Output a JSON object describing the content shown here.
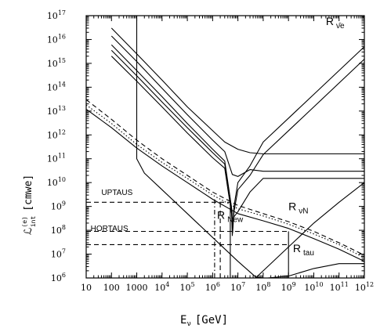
{
  "chart_data": {
    "type": "line",
    "title": "",
    "xlabel": "E",
    "xlabel_sub": "ν",
    "xlabel_unit": "[GeV]",
    "ylabel": "ℒ",
    "ylabel_sup": "(e)",
    "ylabel_sub": "int",
    "ylabel_unit": "[cmwe]",
    "x_scale": "log",
    "y_scale": "log",
    "xlim": [
      10,
      1000000000000.0
    ],
    "ylim": [
      1000000.0,
      1e+17
    ],
    "grid": false,
    "x_ticks": [
      {
        "value": 10,
        "label": "10",
        "sup": ""
      },
      {
        "value": 100,
        "label": "100",
        "sup": ""
      },
      {
        "value": 1000,
        "label": "1000",
        "sup": ""
      },
      {
        "value": 10000.0,
        "label": "10",
        "sup": "4"
      },
      {
        "value": 100000.0,
        "label": "10",
        "sup": "5"
      },
      {
        "value": 1000000.0,
        "label": "10",
        "sup": "6"
      },
      {
        "value": 10000000.0,
        "label": "10",
        "sup": "7"
      },
      {
        "value": 100000000.0,
        "label": "10",
        "sup": "8"
      },
      {
        "value": 1000000000.0,
        "label": "10",
        "sup": "9"
      },
      {
        "value": 10000000000.0,
        "label": "10",
        "sup": "10"
      },
      {
        "value": 100000000000.0,
        "label": "10",
        "sup": "11"
      },
      {
        "value": 1000000000000.0,
        "label": "10",
        "sup": "12"
      }
    ],
    "y_ticks": [
      {
        "value": 1000000.0,
        "label": "10",
        "sup": "6"
      },
      {
        "value": 10000000.0,
        "label": "10",
        "sup": "7"
      },
      {
        "value": 100000000.0,
        "label": "10",
        "sup": "8"
      },
      {
        "value": 1000000000.0,
        "label": "10",
        "sup": "9"
      },
      {
        "value": 10000000000.0,
        "label": "10",
        "sup": "10"
      },
      {
        "value": 100000000000.0,
        "label": "10",
        "sup": "11"
      },
      {
        "value": 1000000000000.0,
        "label": "10",
        "sup": "12"
      },
      {
        "value": 10000000000000.0,
        "label": "10",
        "sup": "13"
      },
      {
        "value": 100000000000000.0,
        "label": "10",
        "sup": "14"
      },
      {
        "value": 1000000000000000.0,
        "label": "10",
        "sup": "15"
      },
      {
        "value": 1e+16,
        "label": "10",
        "sup": "16"
      },
      {
        "value": 1e+17,
        "label": "10",
        "sup": "17"
      }
    ],
    "annotations": [
      {
        "text": "R",
        "sub": "ν̄e",
        "x": 30000000000.0,
        "y": 4e+16
      },
      {
        "text": "R",
        "sub": "νN",
        "x": 1000000000.0,
        "y": 700000000.0
      },
      {
        "text": "R",
        "sub": "New",
        "x": 1500000.0,
        "y": 300000000.0
      },
      {
        "text": "R",
        "sub": "tau",
        "x": 1500000000.0,
        "y": 12000000.0
      },
      {
        "text": "UPTAUS",
        "sub": "",
        "x": 40,
        "y": 3000000000.0
      },
      {
        "text": "HORTAUS",
        "sub": "",
        "x": 15,
        "y": 95000000.0
      }
    ],
    "series": [
      {
        "style": "solid",
        "points": [
          [
            100,
            3e+16
          ],
          [
            1000.0,
            2500000000000000.0
          ],
          [
            10000.0,
            200000000000000.0
          ],
          [
            100000.0,
            15000000000000.0
          ],
          [
            1000000.0,
            1500000000000.0
          ],
          [
            3000000.0,
            500000000000.0
          ],
          [
            10000000.0,
            250000000000.0
          ],
          [
            30000000.0,
            180000000000.0
          ],
          [
            100000000.0,
            160000000000.0
          ],
          [
            1000000000000.0,
            160000000000.0
          ]
        ]
      },
      {
        "style": "solid",
        "points": [
          [
            100,
            1.4e+16
          ],
          [
            1000.0,
            1200000000000000.0
          ],
          [
            10000.0,
            90000000000000.0
          ],
          [
            100000.0,
            7000000000000.0
          ],
          [
            1000000.0,
            600000000000.0
          ],
          [
            3000000.0,
            200000000000.0
          ],
          [
            6000000.0,
            22000000000.0
          ],
          [
            10000000.0,
            18000000000.0
          ],
          [
            30000000.0,
            35000000000.0
          ],
          [
            100000000.0,
            30000000000.0
          ],
          [
            1000000000000.0,
            30000000000.0
          ]
        ]
      },
      {
        "style": "solid",
        "points": [
          [
            100,
            6000000000000000.0
          ],
          [
            1000.0,
            500000000000000.0
          ],
          [
            10000.0,
            40000000000000.0
          ],
          [
            100000.0,
            3000000000000.0
          ],
          [
            1000000.0,
            250000000000.0
          ],
          [
            3000000.0,
            80000000000.0
          ],
          [
            5500000.0,
            1000000000.0
          ],
          [
            6000000.0,
            60000000.0
          ],
          [
            7000000.0,
            1000000000.0
          ],
          [
            10000000.0,
            10000000000.0
          ],
          [
            30000000.0,
            50000000000.0
          ],
          [
            100000000.0,
            500000000000.0
          ],
          [
            10000000000.0,
            50000000000000.0
          ],
          [
            1000000000000.0,
            5000000000000000.0
          ]
        ]
      },
      {
        "style": "solid",
        "points": [
          [
            100,
            3500000000000000.0
          ],
          [
            1000.0,
            300000000000000.0
          ],
          [
            10000.0,
            24000000000000.0
          ],
          [
            100000.0,
            2000000000000.0
          ],
          [
            1000000.0,
            180000000000.0
          ],
          [
            3000000.0,
            60000000000.0
          ],
          [
            5800000.0,
            700000000.0
          ],
          [
            6200000.0,
            80000000.0
          ],
          [
            7000000.0,
            600000000.0
          ],
          [
            10000000.0,
            5000000000.0
          ],
          [
            30000000.0,
            20000000000.0
          ],
          [
            100000000.0,
            150000000000.0
          ],
          [
            10000000000.0,
            15000000000000.0
          ],
          [
            1000000000000.0,
            1500000000000000.0
          ]
        ]
      },
      {
        "style": "solid",
        "points": [
          [
            100,
            2000000000000000.0
          ],
          [
            1000.0,
            180000000000000.0
          ],
          [
            10000.0,
            15000000000000.0
          ],
          [
            100000.0,
            1200000000000.0
          ],
          [
            1000000.0,
            110000000000.0
          ],
          [
            3000000.0,
            40000000000.0
          ],
          [
            6000000.0,
            300000000.0
          ],
          [
            10000000.0,
            600000000.0
          ],
          [
            30000000.0,
            4000000000.0
          ],
          [
            100000000.0,
            15000000000.0
          ],
          [
            1000000000000.0,
            15000000000.0
          ]
        ]
      },
      {
        "style": "dashed",
        "points": [
          [
            10,
            30000000000000.0
          ],
          [
            100,
            4500000000000.0
          ],
          [
            1000.0,
            600000000000.0
          ],
          [
            10000.0,
            100000000000.0
          ],
          [
            100000.0,
            20000000000.0
          ],
          [
            1000000.0,
            4000000000.0
          ],
          [
            10000000.0,
            1100000000.0
          ],
          [
            100000000.0,
            500000000.0
          ],
          [
            1000000000.0,
            230000000.0
          ],
          [
            10000000000.0,
            90000000.0
          ],
          [
            100000000000.0,
            30000000.0
          ],
          [
            1000000000000.0,
            9000000.0
          ]
        ]
      },
      {
        "style": "dotted",
        "points": [
          [
            10,
            18000000000000.0
          ],
          [
            100,
            3000000000000.0
          ],
          [
            1000.0,
            400000000000.0
          ],
          [
            10000.0,
            70000000000.0
          ],
          [
            100000.0,
            15000000000.0
          ],
          [
            1000000.0,
            3000000000.0
          ],
          [
            10000000.0,
            800000000.0
          ],
          [
            100000000.0,
            400000000.0
          ],
          [
            1000000000.0,
            180000000.0
          ],
          [
            10000000000.0,
            70000000.0
          ],
          [
            100000000000.0,
            25000000.0
          ],
          [
            1000000000000.0,
            7000000.0
          ]
        ]
      },
      {
        "style": "solid",
        "points": [
          [
            10,
            12000000000000.0
          ],
          [
            100,
            2000000000000.0
          ],
          [
            1000.0,
            280000000000.0
          ],
          [
            10000.0,
            50000000000.0
          ],
          [
            100000.0,
            10000000000.0
          ],
          [
            1000000.0,
            2000000000.0
          ],
          [
            10000000.0,
            500000000.0
          ],
          [
            100000000.0,
            250000000.0
          ],
          [
            1000000000.0,
            120000000.0
          ],
          [
            10000000000.0,
            45000000.0
          ],
          [
            100000000000.0,
            16000000.0
          ],
          [
            1000000000000.0,
            5000000.0
          ]
        ]
      },
      {
        "style": "solid",
        "points": [
          [
            1000.0,
            1e+17
          ],
          [
            1000.0,
            100000000000.0
          ],
          [
            2000.0,
            25000000000.0
          ],
          [
            10000.0,
            5000000000.0
          ],
          [
            100000.0,
            500000000.0
          ],
          [
            1000000.0,
            50000000.0
          ],
          [
            10000000.0,
            5000000.0
          ],
          [
            50000000.0,
            1100000.0
          ],
          [
            100000000.0,
            1000000.0
          ]
        ]
      },
      {
        "style": "solid",
        "points": [
          [
            50000000.0,
            1000000.0
          ],
          [
            1000000000.0,
            20000000.0
          ],
          [
            10000000000.0,
            200000000.0
          ],
          [
            100000000000.0,
            1500000000.0
          ],
          [
            1000000000000.0,
            10000000000.0
          ]
        ]
      },
      {
        "style": "solid",
        "points": [
          [
            150000000.0,
            1000000.0
          ],
          [
            1000000000.0,
            1200000.0
          ],
          [
            10000000000.0,
            2500000.0
          ],
          [
            100000000000.0,
            4000000.0
          ],
          [
            1000000000000.0,
            4000000.0
          ]
        ]
      },
      {
        "style": "dashed",
        "points": [
          [
            10,
            1500000000.0
          ],
          [
            5000000.0,
            1500000000.0
          ]
        ]
      },
      {
        "style": "dashed",
        "points": [
          [
            10,
            25000000.0
          ],
          [
            1000000000.0,
            25000000.0
          ]
        ]
      },
      {
        "style": "dashed",
        "points": [
          [
            10,
            90000000.0
          ],
          [
            1000000000.0,
            90000000.0
          ]
        ]
      },
      {
        "style": "dashed",
        "points": [
          [
            2000000.0,
            1000000.0
          ],
          [
            2000000.0,
            1500000000.0
          ]
        ]
      },
      {
        "style": "dashdot",
        "points": [
          [
            1200000.0,
            1000000.0
          ],
          [
            1200000.0,
            2500000000.0
          ]
        ]
      },
      {
        "style": "solid",
        "points": [
          [
            5000000.0,
            1500000000.0
          ],
          [
            5000000.0,
            1000000.0
          ]
        ]
      },
      {
        "style": "solid",
        "points": [
          [
            1000000000.0,
            90000000.0
          ],
          [
            1000000000.0,
            1000000.0
          ]
        ]
      }
    ]
  }
}
